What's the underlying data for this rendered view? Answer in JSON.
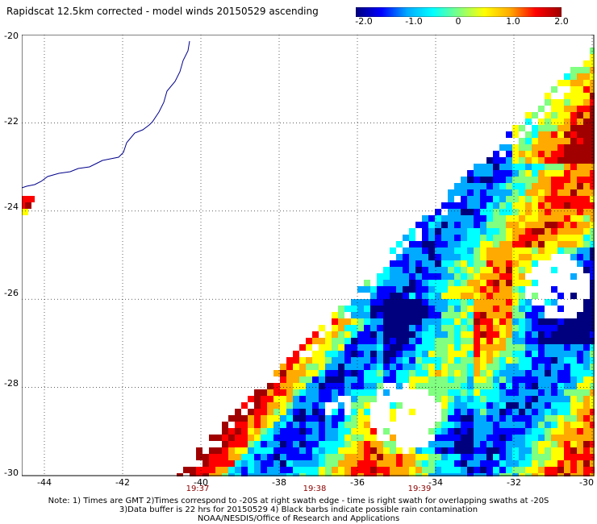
{
  "title": "Rapidscat 12.5km corrected - model winds 20150529 ascending",
  "colorbar": {
    "ticks": [
      "-2.0",
      "-1.0",
      "0",
      "1.0",
      "2.0"
    ],
    "colors": [
      "#00007f",
      "#0000ff",
      "#00aaff",
      "#00ffff",
      "#80ff80",
      "#ffff00",
      "#ffaa00",
      "#ff0000",
      "#a00000"
    ]
  },
  "map": {
    "lat_labels": [
      "-20",
      "-22",
      "-24",
      "-26",
      "-28",
      "-30"
    ],
    "lon_labels": [
      "-44",
      "-42",
      "-40",
      "-38",
      "-36",
      "-34",
      "-32",
      "-30"
    ],
    "time_labels": [
      "19:37",
      "19:38",
      "19:39"
    ],
    "coastline_color": "#00008b",
    "grid_color": "#000000"
  },
  "footer": {
    "line1": "Note: 1) Times are GMT 2)Times correspond to -20S at right swath edge - time is right swath for overlapping swaths at -20S",
    "line2": "3)Data buffer is 22 hrs for 20150529 4) Black barbs indicate possible rain contamination",
    "line3": "NOAA/NESDIS/Office of Research and Applications"
  }
}
